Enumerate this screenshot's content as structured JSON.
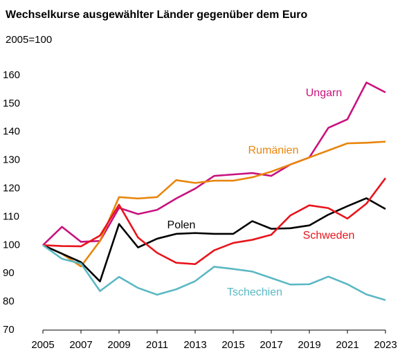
{
  "chart_data": {
    "type": "line",
    "title": "Wechselkurse ausgewählter Länder gegenüber dem Euro",
    "subtitle": "2005=100",
    "x": [
      2005,
      2006,
      2007,
      2008,
      2009,
      2010,
      2011,
      2012,
      2013,
      2014,
      2015,
      2016,
      2017,
      2018,
      2019,
      2020,
      2021,
      2022,
      2023
    ],
    "xlim": [
      2005,
      2023
    ],
    "xticks": [
      2005,
      2007,
      2009,
      2011,
      2013,
      2015,
      2017,
      2019,
      2021,
      2023
    ],
    "ylim": [
      70,
      160
    ],
    "yticks": [
      70,
      80,
      90,
      100,
      110,
      120,
      130,
      140,
      150,
      160
    ],
    "grid": false,
    "series": [
      {
        "name": "Ungarn",
        "color": "#c8127e",
        "values": [
          100,
          106.5,
          101.2,
          101.5,
          113.2,
          111,
          112.5,
          116.5,
          120,
          124.5,
          125,
          125.5,
          124.5,
          128.5,
          131,
          141.5,
          144.5,
          157.5,
          154
        ]
      },
      {
        "name": "Rumänien",
        "color": "#e8850c",
        "values": [
          100,
          97,
          92.5,
          101.5,
          117,
          116.5,
          117,
          123,
          122,
          122.8,
          122.8,
          124,
          126,
          128.5,
          131,
          133.5,
          136,
          136.2,
          136.6
        ]
      },
      {
        "name": "Polen",
        "color": "#000000",
        "values": [
          100,
          97,
          94,
          87.2,
          107.5,
          99.2,
          102.3,
          104,
          104.3,
          104,
          104,
          108.5,
          105.8,
          106,
          107,
          110.8,
          113.8,
          116.6,
          112.8
        ]
      },
      {
        "name": "Schweden",
        "color": "#e8141c",
        "values": [
          100,
          99.7,
          99.6,
          103.4,
          114.3,
          102.7,
          97.3,
          93.8,
          93.3,
          98.2,
          100.8,
          101.9,
          103.7,
          110.5,
          114.1,
          113.1,
          109.4,
          114.7,
          123.7
        ]
      },
      {
        "name": "Tschechien",
        "color": "#5bb8c4",
        "values": [
          100,
          95.2,
          93.5,
          83.8,
          88.8,
          84.9,
          82.5,
          84.4,
          87.3,
          92.4,
          91.6,
          90.7,
          88.4,
          86.1,
          86.2,
          88.9,
          86.2,
          82.6,
          80.6
        ]
      }
    ]
  }
}
